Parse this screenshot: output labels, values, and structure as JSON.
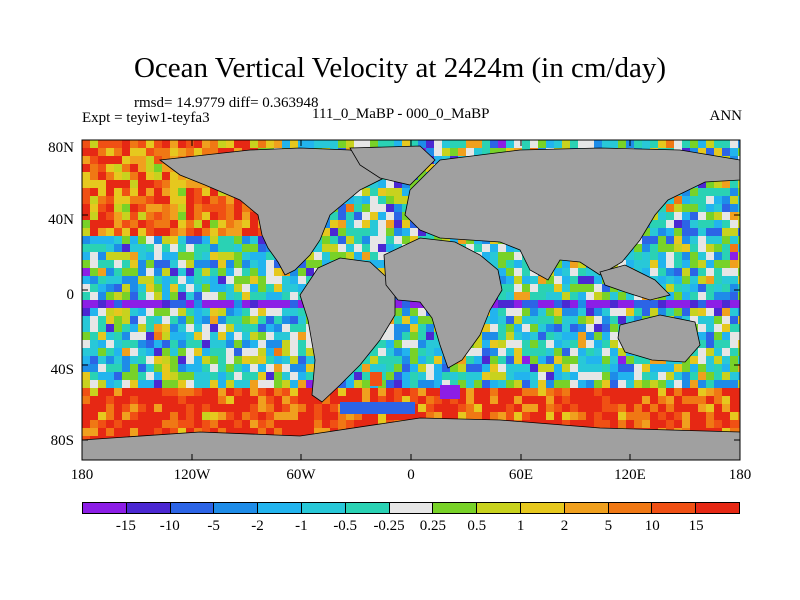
{
  "title": "Ocean Vertical Velocity at 2424m (in cm/day)",
  "stats_text": "rmsd= 14.9779 diff= 0.363948",
  "experiment_text": "Expt = teyiw1-teyfa3",
  "cases_text": "111_0_MaBP - 000_0_MaBP",
  "season": "ANN",
  "lat_labels": [
    "80N",
    "40N",
    "0",
    "40S",
    "80S"
  ],
  "lon_labels": [
    "180",
    "120W",
    "60W",
    "0",
    "60E",
    "120E",
    "180"
  ],
  "colorbar": {
    "labels": [
      "-15",
      "-10",
      "-5",
      "-2",
      "-1",
      "-0.5",
      "-0.25",
      "0.25",
      "0.5",
      "1",
      "2",
      "5",
      "10",
      "15"
    ],
    "colors": [
      "#8c1ee6",
      "#4b28d2",
      "#2c64e6",
      "#1e8ce8",
      "#22b4ee",
      "#28c8d8",
      "#2ad2b4",
      "#e6e6e6",
      "#78d228",
      "#c8d21e",
      "#e6c81e",
      "#f0a01e",
      "#f07814",
      "#f05014",
      "#e62814"
    ]
  },
  "land_color": "#a0a0a0"
}
